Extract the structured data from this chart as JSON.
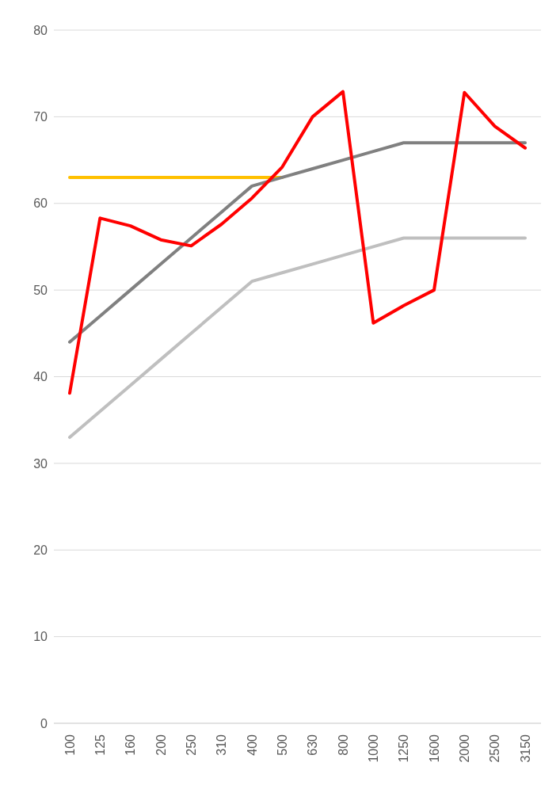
{
  "chart_data": {
    "type": "line",
    "categories": [
      "100",
      "125",
      "160",
      "200",
      "250",
      "310",
      "400",
      "500",
      "630",
      "800",
      "1000",
      "1250",
      "1600",
      "2000",
      "2500",
      "3150"
    ],
    "series": [
      {
        "color": "#ffc000",
        "values": [
          63,
          63,
          63,
          63,
          63,
          63,
          63,
          63,
          null,
          null,
          null,
          null,
          null,
          null,
          null,
          null
        ]
      },
      {
        "color": "#808080",
        "values": [
          44,
          47,
          50,
          53,
          56,
          59,
          62,
          63,
          64,
          65,
          66,
          67,
          67,
          67,
          67,
          67
        ]
      },
      {
        "color": "#bfbfbf",
        "values": [
          33,
          36,
          39,
          42,
          45,
          48,
          51,
          52,
          53,
          54,
          55,
          56,
          56,
          56,
          56,
          56
        ]
      },
      {
        "color": "#ff0000",
        "values": [
          38.1,
          58.3,
          57.4,
          55.8,
          55.1,
          57.6,
          60.6,
          64.2,
          70.0,
          72.9,
          46.2,
          48.2,
          50.0,
          72.8,
          68.9,
          66.4
        ]
      }
    ],
    "ylim": [
      0,
      80
    ],
    "yticks": [
      0,
      10,
      20,
      30,
      40,
      50,
      60,
      70,
      80
    ],
    "grid": "y",
    "marker": "none",
    "line_style": "solid"
  }
}
